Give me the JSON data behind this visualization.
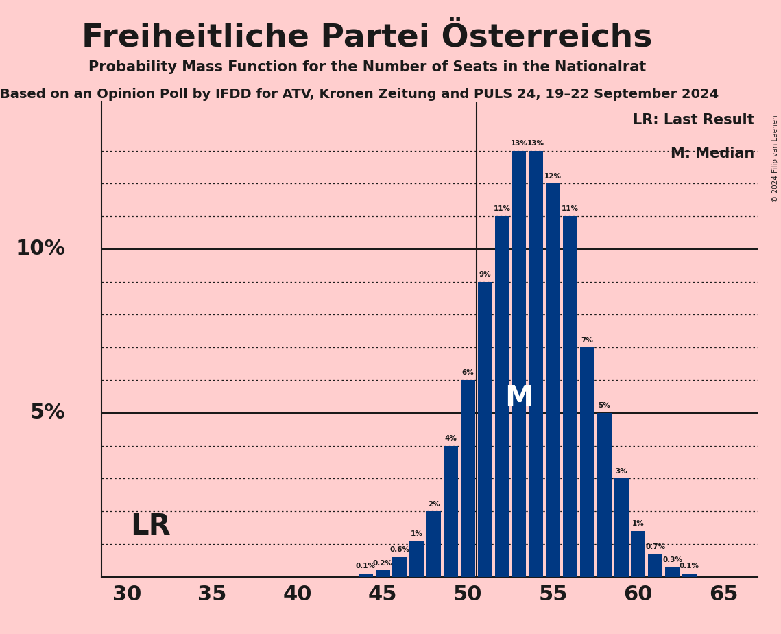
{
  "title": "Freiheitliche Partei Österreichs",
  "subtitle": "Probability Mass Function for the Number of Seats in the Nationalrat",
  "source_line": "Based on an Opinion Poll by IFDD for ATV, Kronen Zeitung and PULS 24, 19–22 September 2024",
  "copyright": "© 2024 Filip van Laenen",
  "seats": [
    30,
    31,
    32,
    33,
    34,
    35,
    36,
    37,
    38,
    39,
    40,
    41,
    42,
    43,
    44,
    45,
    46,
    47,
    48,
    49,
    50,
    51,
    52,
    53,
    54,
    55,
    56,
    57,
    58,
    59,
    60,
    61,
    62,
    63,
    64,
    65
  ],
  "probs": [
    0.0,
    0.0,
    0.0,
    0.0,
    0.0,
    0.0,
    0.0,
    0.0,
    0.0,
    0.0,
    0.0,
    0.0,
    0.0,
    0.0,
    0.1,
    0.2,
    0.6,
    1.1,
    2.0,
    4.0,
    6.0,
    9.0,
    11.0,
    13.0,
    13.0,
    12.0,
    11.0,
    7.0,
    5.0,
    3.0,
    1.4,
    0.7,
    0.3,
    0.1,
    0.0,
    0.0
  ],
  "bar_color": "#003882",
  "lr_seat": 51,
  "median_seat": 53,
  "background_color": "#ffcece",
  "text_color": "#1a1a1a",
  "axis_color": "#1a1a1a",
  "dotted_levels": [
    1,
    2,
    3,
    4,
    6,
    7,
    8,
    9,
    11,
    12,
    13
  ],
  "solid_levels": [
    5,
    10
  ],
  "xlim": [
    28.5,
    67.0
  ],
  "ylim": [
    0,
    14.5
  ],
  "xticks": [
    30,
    35,
    40,
    45,
    50,
    55,
    60,
    65
  ]
}
